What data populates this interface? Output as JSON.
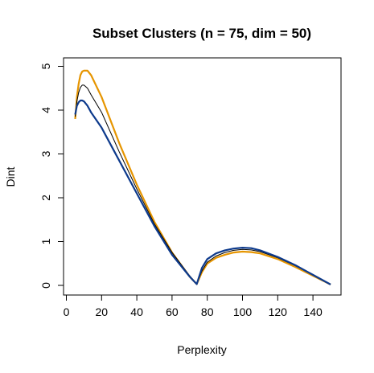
{
  "chart_data": {
    "type": "line",
    "title": "Subset Clusters (n = 75, dim = 50)",
    "xlabel": "Perplexity",
    "ylabel": "Dint",
    "xlim": [
      5,
      150
    ],
    "ylim": [
      0,
      5
    ],
    "xticks": [
      0,
      20,
      40,
      60,
      80,
      100,
      120,
      140
    ],
    "yticks": [
      0,
      1,
      2,
      3,
      4,
      5
    ],
    "grid": false,
    "legend": "none",
    "series": [
      {
        "color": "#E69500",
        "x": [
          5,
          6,
          7,
          8,
          9,
          10,
          12,
          14,
          20,
          30,
          40,
          50,
          60,
          70,
          74,
          77,
          80,
          85,
          90,
          95,
          100,
          105,
          110,
          120,
          130,
          140,
          150
        ],
        "y": [
          3.8,
          4.3,
          4.6,
          4.8,
          4.88,
          4.9,
          4.9,
          4.8,
          4.3,
          3.25,
          2.3,
          1.45,
          0.75,
          0.2,
          0.03,
          0.3,
          0.5,
          0.63,
          0.7,
          0.75,
          0.77,
          0.76,
          0.73,
          0.6,
          0.42,
          0.22,
          0.02
        ]
      },
      {
        "color": "#000000",
        "x": [
          5,
          6,
          7,
          8,
          9,
          10,
          12,
          14,
          20,
          30,
          40,
          50,
          60,
          70,
          74,
          77,
          80,
          85,
          90,
          95,
          100,
          105,
          110,
          120,
          130,
          140,
          150
        ],
        "y": [
          3.85,
          4.2,
          4.4,
          4.52,
          4.57,
          4.57,
          4.5,
          4.35,
          3.95,
          3.05,
          2.2,
          1.4,
          0.75,
          0.22,
          0.03,
          0.33,
          0.53,
          0.67,
          0.75,
          0.8,
          0.82,
          0.81,
          0.77,
          0.63,
          0.45,
          0.24,
          0.02
        ]
      },
      {
        "color": "#0D3A8C",
        "x": [
          5,
          6,
          7,
          8,
          9,
          10,
          12,
          14,
          20,
          30,
          40,
          50,
          60,
          70,
          74,
          77,
          80,
          85,
          90,
          95,
          100,
          105,
          110,
          120,
          130,
          140,
          150
        ],
        "y": [
          3.9,
          4.1,
          4.18,
          4.22,
          4.22,
          4.2,
          4.1,
          3.95,
          3.6,
          2.85,
          2.1,
          1.35,
          0.7,
          0.2,
          0.03,
          0.4,
          0.6,
          0.73,
          0.8,
          0.84,
          0.86,
          0.85,
          0.8,
          0.65,
          0.46,
          0.24,
          0.02
        ]
      }
    ]
  }
}
